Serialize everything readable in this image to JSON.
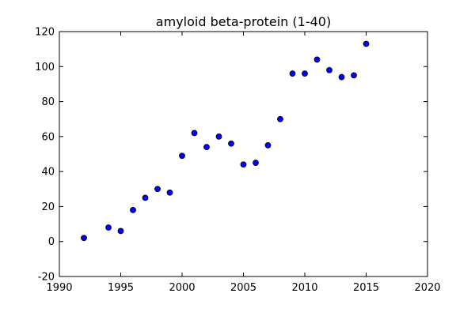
{
  "chart_data": {
    "type": "scatter",
    "title": "amyloid beta-protein (1-40)",
    "xlabel": "",
    "ylabel": "",
    "xlim": [
      1990,
      2020
    ],
    "ylim": [
      -20,
      120
    ],
    "xticks": [
      1990,
      1995,
      2000,
      2005,
      2010,
      2015,
      2020
    ],
    "yticks": [
      -20,
      0,
      20,
      40,
      60,
      80,
      100,
      120
    ],
    "grid": false,
    "marker_color": "#0000ff",
    "marker_edge": "#000000",
    "series": [
      {
        "x": [
          1992,
          1994,
          1995,
          1996,
          1997,
          1998,
          1999,
          2000,
          2001,
          2002,
          2003,
          2004,
          2005,
          2006,
          2007,
          2008,
          2009,
          2010,
          2011,
          2012,
          2013,
          2014,
          2015
        ],
        "y": [
          2,
          8,
          6,
          18,
          25,
          30,
          28,
          49,
          62,
          54,
          60,
          56,
          44,
          45,
          55,
          70,
          96,
          96,
          104,
          98,
          94,
          95,
          113
        ]
      }
    ]
  }
}
